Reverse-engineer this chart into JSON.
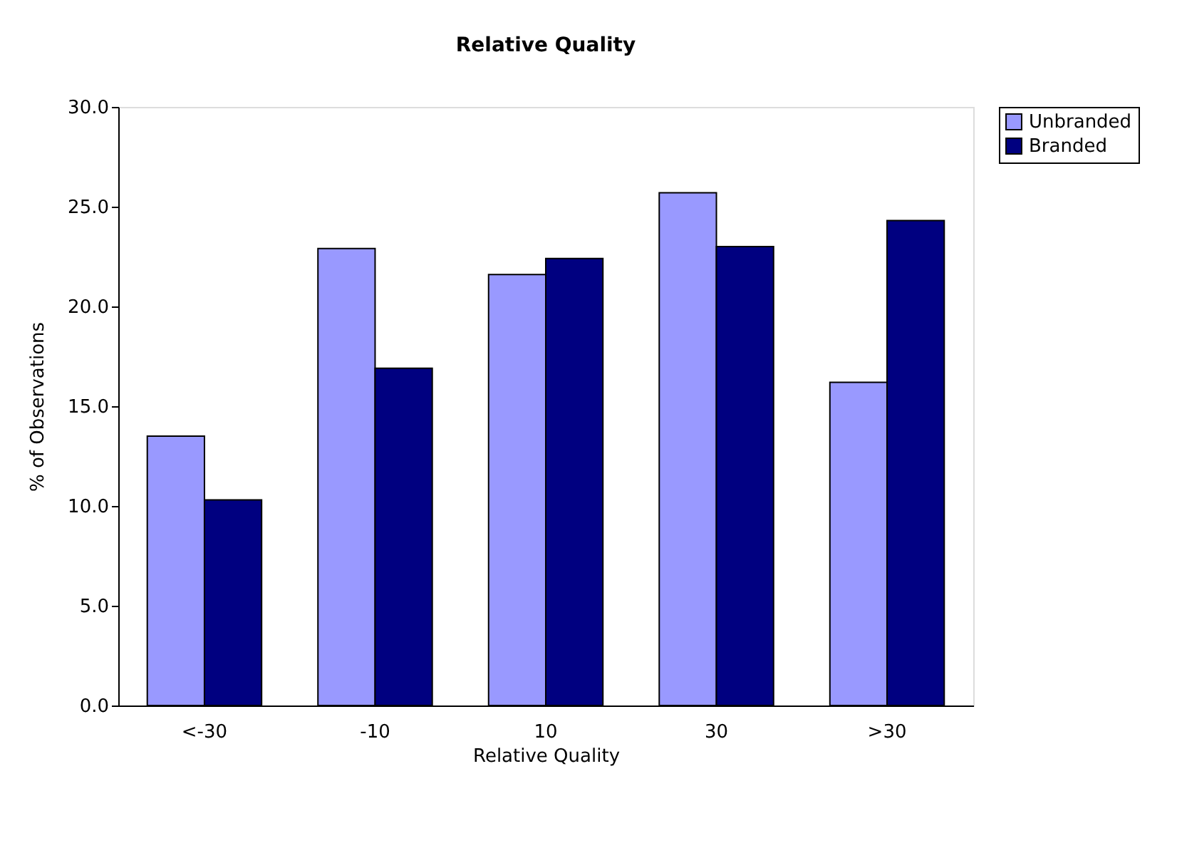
{
  "chart_data": {
    "type": "bar",
    "title": "Relative Quality",
    "xlabel": "Relative Quality",
    "ylabel": "% of Observations",
    "categories": [
      "<-30",
      "-10",
      "10",
      "30",
      ">30"
    ],
    "series": [
      {
        "name": "Unbranded",
        "color": "#9999ff",
        "values": [
          13.5,
          22.9,
          21.6,
          25.7,
          16.2
        ]
      },
      {
        "name": "Branded",
        "color": "#000080",
        "values": [
          10.3,
          16.9,
          22.4,
          23.0,
          24.3
        ]
      }
    ],
    "ylim": [
      0,
      30
    ],
    "yticks": [
      {
        "value": 0,
        "label": "0.0"
      },
      {
        "value": 5,
        "label": "5.0"
      },
      {
        "value": 10,
        "label": "10.0"
      },
      {
        "value": 15,
        "label": "15.0"
      },
      {
        "value": 20,
        "label": "20.0"
      },
      {
        "value": 25,
        "label": "25.0"
      },
      {
        "value": 30,
        "label": "30.0"
      }
    ],
    "grid": false,
    "legend": "top right"
  }
}
